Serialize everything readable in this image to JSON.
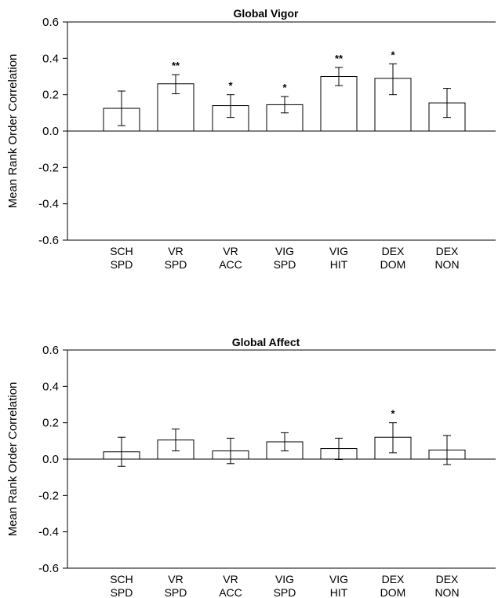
{
  "chart_data": [
    {
      "type": "bar",
      "title": "Global Vigor",
      "ylabel": "Mean Rank Order Correlation",
      "ylim": [
        -0.6,
        0.6
      ],
      "yticks": [
        "0.6",
        "0.4",
        "0.2",
        "0.0",
        "-0.2",
        "-0.4",
        "-0.6"
      ],
      "categories": [
        [
          "SCH",
          "SPD"
        ],
        [
          "VR",
          "SPD"
        ],
        [
          "VR",
          "ACC"
        ],
        [
          "VIG",
          "SPD"
        ],
        [
          "VIG",
          "HIT"
        ],
        [
          "DEX",
          "DOM"
        ],
        [
          "DEX",
          "NON"
        ]
      ],
      "values": [
        0.125,
        0.26,
        0.14,
        0.145,
        0.3,
        0.29,
        0.155
      ],
      "err_low": [
        0.03,
        0.205,
        0.075,
        0.1,
        0.25,
        0.2,
        0.075
      ],
      "err_high": [
        0.22,
        0.31,
        0.2,
        0.19,
        0.35,
        0.37,
        0.235
      ],
      "significance": [
        "",
        "**",
        "*",
        "*",
        "**",
        "*",
        ""
      ]
    },
    {
      "type": "bar",
      "title": "Global Affect",
      "ylabel": "Mean Rank Order Correlation",
      "ylim": [
        -0.6,
        0.6
      ],
      "yticks": [
        "0.6",
        "0.4",
        "0.2",
        "0.0",
        "-0.2",
        "-0.4",
        "-0.6"
      ],
      "categories": [
        [
          "SCH",
          "SPD"
        ],
        [
          "VR",
          "SPD"
        ],
        [
          "VR",
          "ACC"
        ],
        [
          "VIG",
          "SPD"
        ],
        [
          "VIG",
          "HIT"
        ],
        [
          "DEX",
          "DOM"
        ],
        [
          "DEX",
          "NON"
        ]
      ],
      "values": [
        0.04,
        0.105,
        0.045,
        0.095,
        0.058,
        0.12,
        0.05
      ],
      "err_low": [
        -0.04,
        0.045,
        -0.025,
        0.045,
        -0.002,
        0.035,
        -0.03
      ],
      "err_high": [
        0.12,
        0.165,
        0.115,
        0.145,
        0.115,
        0.2,
        0.13
      ],
      "significance": [
        "",
        "",
        "",
        "",
        "",
        "*",
        ""
      ]
    }
  ]
}
